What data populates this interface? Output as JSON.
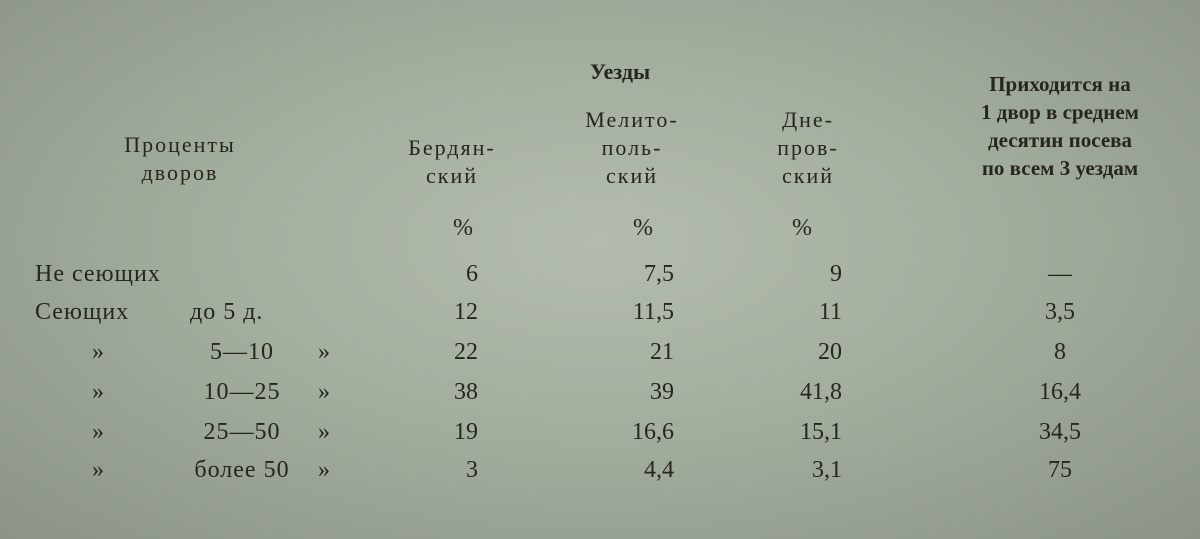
{
  "table": {
    "group_header": "Уезды",
    "row_header": [
      "Проценты",
      "дворов"
    ],
    "columns": [
      {
        "lines": [
          "Бердян-",
          "ский"
        ],
        "unit": "%"
      },
      {
        "lines": [
          "Мелито-",
          "поль-",
          "ский"
        ],
        "unit": "%"
      },
      {
        "lines": [
          "Дне-",
          "пров-",
          "ский"
        ],
        "unit": "%"
      }
    ],
    "last_column": [
      "Приходится на",
      "1 двор в среднем",
      "десятин посева",
      "по всем 3 уездам"
    ],
    "rows": [
      {
        "label": "Не сеющих",
        "values": [
          "6",
          "7,5",
          "9",
          "—"
        ]
      },
      {
        "label": "Сеющих",
        "range": "до 5 д.",
        "values": [
          "12",
          "11,5",
          "11",
          "3,5"
        ]
      },
      {
        "open": "»",
        "range": "5—10",
        "close": "»",
        "values": [
          "22",
          "21",
          "20",
          "8"
        ]
      },
      {
        "open": "»",
        "range": "10—25",
        "close": "»",
        "values": [
          "38",
          "39",
          "41,8",
          "16,4"
        ]
      },
      {
        "open": "»",
        "range": "25—50",
        "close": "»",
        "values": [
          "19",
          "16,6",
          "15,1",
          "34,5"
        ]
      },
      {
        "open": "»",
        "range": "более 50",
        "close": "»",
        "values": [
          "3",
          "4,4",
          "3,1",
          "75"
        ]
      }
    ]
  }
}
